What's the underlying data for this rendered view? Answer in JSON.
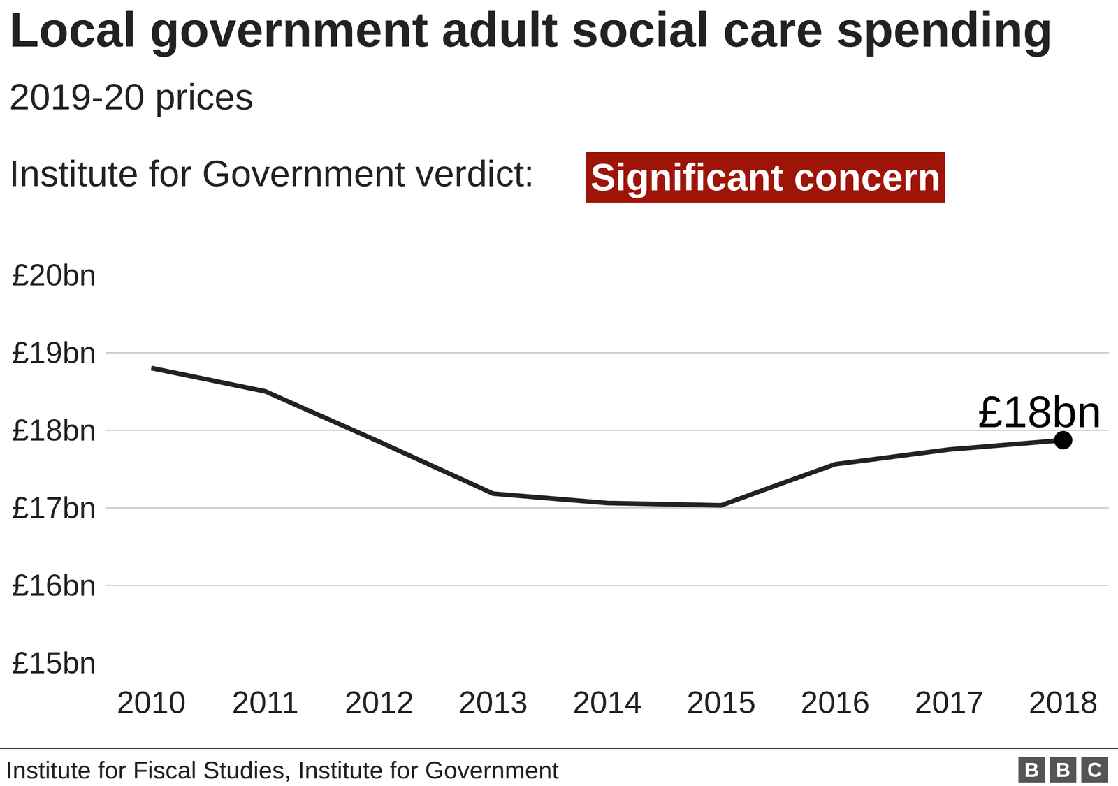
{
  "chart_data": {
    "type": "line",
    "title": "Local government adult social care spending",
    "subtitle": "2019-20 prices",
    "verdict_label": "Institute for Government verdict:",
    "verdict": "Significant concern",
    "categories": [
      "2010",
      "2011",
      "2012",
      "2013",
      "2014",
      "2015",
      "2016",
      "2017",
      "2018"
    ],
    "values": [
      18.8,
      18.5,
      17.85,
      17.18,
      17.06,
      17.03,
      17.56,
      17.75,
      17.87
    ],
    "color": "#222222",
    "marker": "circle",
    "end_label": "£18bn",
    "ylim": [
      15,
      20
    ],
    "yticks": [
      {
        "value": 15,
        "label": "£15bn"
      },
      {
        "value": 16,
        "label": "£16bn"
      },
      {
        "value": 17,
        "label": "£17bn"
      },
      {
        "value": 18,
        "label": "£18bn"
      },
      {
        "value": 19,
        "label": "£19bn"
      },
      {
        "value": 20,
        "label": "£20bn"
      }
    ],
    "grid": true,
    "source": "Institute for Fiscal Studies, Institute for Government",
    "logo": "BBC"
  }
}
